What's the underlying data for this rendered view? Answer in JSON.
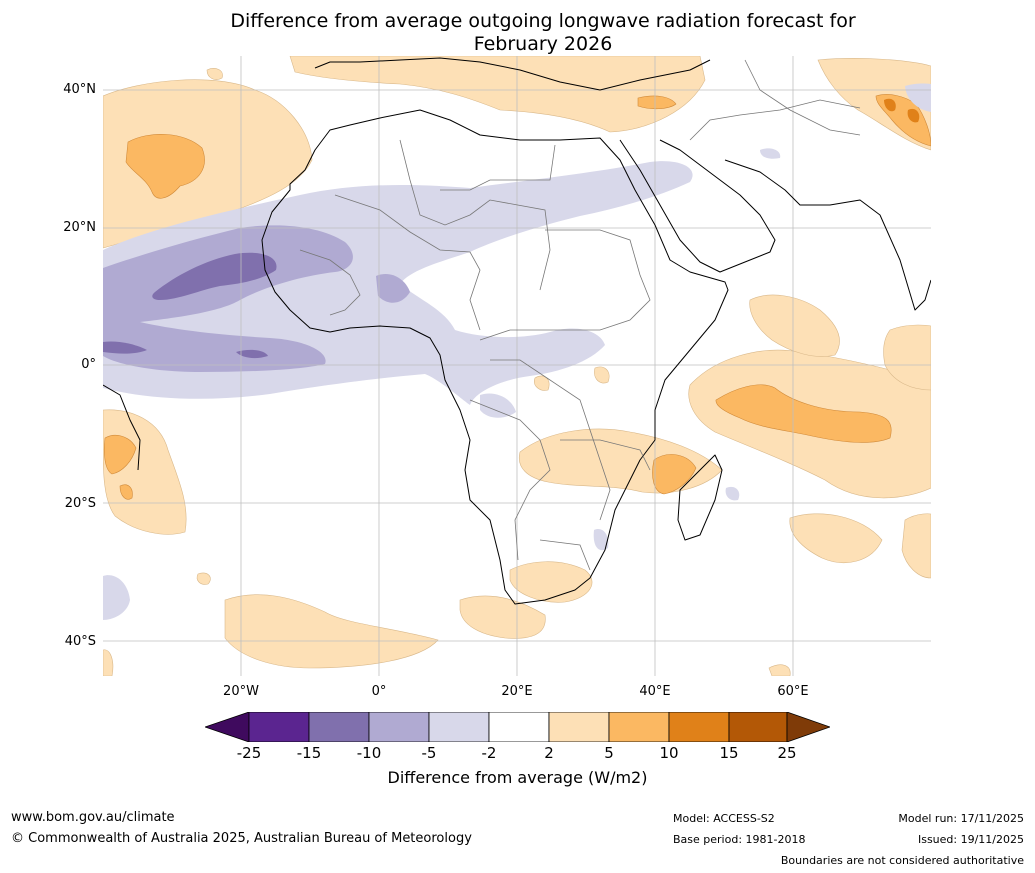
{
  "title_line1": "Difference from average outgoing longwave radiation forecast for",
  "title_line2": "February 2026",
  "lat_labels": [
    "40°N",
    "20°N",
    "0°",
    "20°S",
    "40°S"
  ],
  "lon_labels": [
    "20°W",
    "0°",
    "20°E",
    "40°E",
    "60°E"
  ],
  "colorbar": {
    "ticks": [
      "-25",
      "-15",
      "-10",
      "-5",
      "-2",
      "2",
      "5",
      "10",
      "15",
      "25"
    ],
    "colors": [
      "#3f0a5e",
      "#5b2590",
      "#8070ad",
      "#b0aad2",
      "#d8d8ea",
      "#ffffff",
      "#fde0b6",
      "#fbb862",
      "#e08119",
      "#b35806",
      "#7f3b08"
    ],
    "label": "Difference from average (W/m2)"
  },
  "footer": {
    "website": "www.bom.gov.au/climate",
    "copyright": "© Commonwealth of Australia 2025, Australian Bureau of Meteorology",
    "model": "Model: ACCESS-S2",
    "base_period": "Base period: 1981-2018",
    "model_run": "Model run: 17/11/2025",
    "issued": "Issued: 19/11/2025",
    "disclaimer": "Boundaries are not considered authoritative"
  }
}
